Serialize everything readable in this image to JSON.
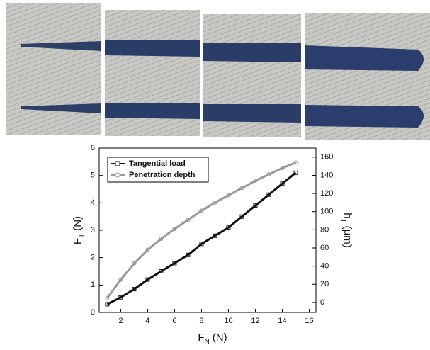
{
  "chart_data": {
    "type": "line",
    "xlabel": [
      "F",
      "N",
      "(N)"
    ],
    "ylabel": [
      "F",
      "T",
      "(N)"
    ],
    "y2label": [
      "h",
      "T",
      "(μm)"
    ],
    "xlim": [
      0.4,
      16.5
    ],
    "xticks": [
      2,
      4,
      6,
      8,
      10,
      12,
      14,
      16
    ],
    "ylim": [
      0,
      6
    ],
    "yticks": [
      0,
      1,
      2,
      3,
      4,
      5,
      6
    ],
    "y2lim": [
      -11,
      170
    ],
    "y2ticks": [
      0,
      20,
      40,
      60,
      80,
      100,
      120,
      140,
      160
    ],
    "legend": "upper left",
    "x": [
      1,
      2,
      3,
      4,
      5,
      6,
      7,
      8,
      9,
      10,
      11,
      12,
      13,
      14,
      15
    ],
    "series": [
      {
        "name": "Tangential load",
        "color": "#111111",
        "marker": "square",
        "values": [
          0.3,
          0.55,
          0.85,
          1.2,
          1.5,
          1.8,
          2.1,
          2.5,
          2.8,
          3.1,
          3.5,
          3.9,
          4.3,
          4.7,
          5.1
        ]
      },
      {
        "name": "Penetration depth",
        "color": "#999999",
        "marker": "circle",
        "axis": "y2",
        "values": [
          5,
          25,
          43,
          58,
          70,
          81,
          91,
          101,
          110,
          118,
          126,
          134,
          141,
          148,
          154
        ]
      }
    ]
  }
}
